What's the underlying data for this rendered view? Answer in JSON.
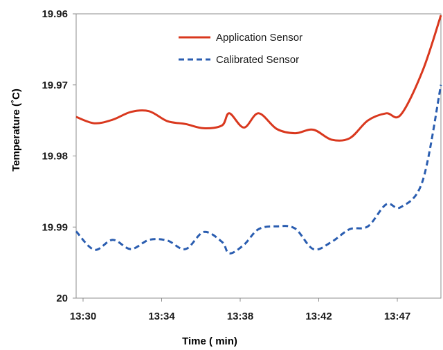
{
  "chart_data": {
    "type": "line",
    "xlabel": "Time ( min)",
    "ylabel": "Temperature (˚C)",
    "x_tick_labels": [
      "13:30",
      "13:34",
      "13:38",
      "13:42",
      "13:47"
    ],
    "y_tick_labels": [
      "19.96",
      "19.97",
      "19.98",
      "19.99",
      "20"
    ],
    "ylim": [
      19.96,
      20.0
    ],
    "y_inverted": true,
    "xlim_minutes_from_1330": [
      0,
      20
    ],
    "grid": false,
    "legend_position": "top-center",
    "series": [
      {
        "name": "Application Sensor",
        "color": "#d9381e",
        "style": "solid",
        "points": [
          [
            0,
            19.9745
          ],
          [
            1,
            19.9754
          ],
          [
            2,
            19.9749
          ],
          [
            3,
            19.9738
          ],
          [
            4,
            19.9737
          ],
          [
            5,
            19.9751
          ],
          [
            6,
            19.9755
          ],
          [
            7,
            19.9761
          ],
          [
            8,
            19.9757
          ],
          [
            8.4,
            19.974
          ],
          [
            9.2,
            19.976
          ],
          [
            10,
            19.974
          ],
          [
            11,
            19.9762
          ],
          [
            12,
            19.9768
          ],
          [
            13,
            19.9763
          ],
          [
            14,
            19.9777
          ],
          [
            15,
            19.9775
          ],
          [
            16,
            19.975
          ],
          [
            17,
            19.974
          ],
          [
            17.8,
            19.9742
          ],
          [
            19,
            19.968
          ],
          [
            20,
            19.9602
          ]
        ]
      },
      {
        "name": "Calibrated Sensor",
        "color": "#2a5db0",
        "style": "dashed",
        "points": [
          [
            0,
            19.9906
          ],
          [
            1,
            19.9932
          ],
          [
            2,
            19.9918
          ],
          [
            3,
            19.9931
          ],
          [
            4,
            19.9918
          ],
          [
            5,
            19.9919
          ],
          [
            6,
            19.9931
          ],
          [
            7,
            19.9907
          ],
          [
            8,
            19.9921
          ],
          [
            8.4,
            19.9937
          ],
          [
            9.2,
            19.9925
          ],
          [
            10,
            19.9903
          ],
          [
            11,
            19.9899
          ],
          [
            12,
            19.9902
          ],
          [
            13,
            19.9931
          ],
          [
            14,
            19.9921
          ],
          [
            15,
            19.9903
          ],
          [
            16,
            19.9899
          ],
          [
            17,
            19.9868
          ],
          [
            17.8,
            19.9872
          ],
          [
            19,
            19.9835
          ],
          [
            20,
            19.97
          ]
        ]
      }
    ]
  }
}
